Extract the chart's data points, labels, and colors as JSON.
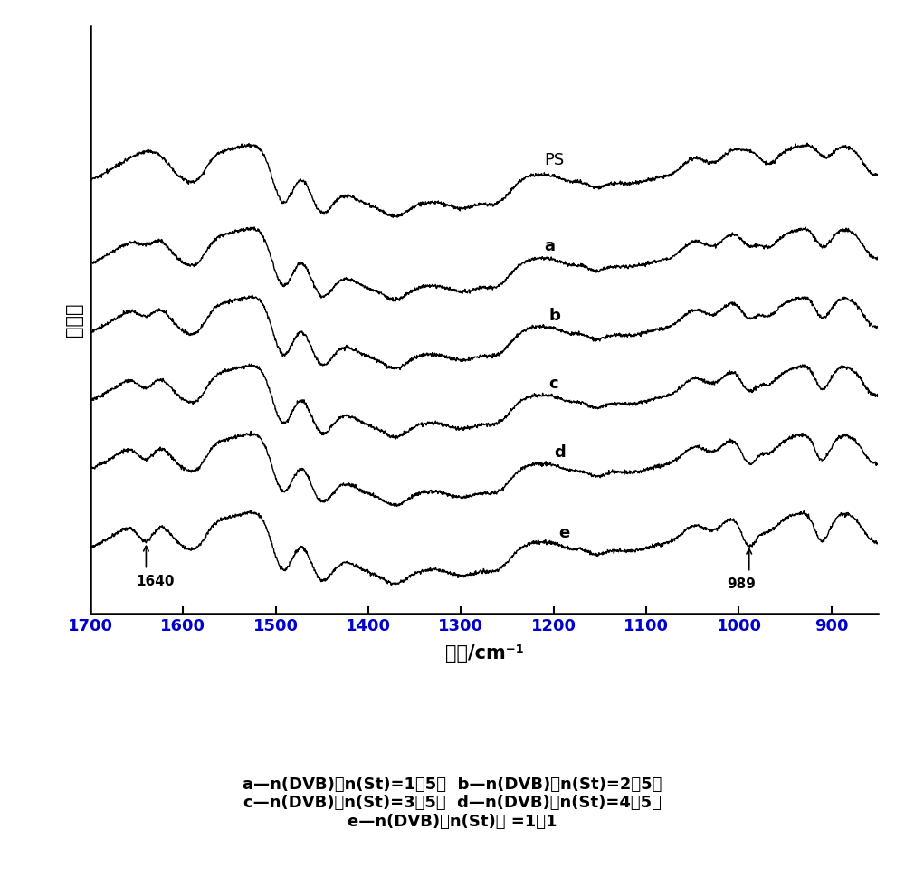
{
  "xmin": 850,
  "xmax": 1700,
  "xlabel": "波数/cm⁻¹",
  "ylabel": "透过率",
  "curve_labels": [
    "PS",
    "a",
    "b",
    "c",
    "d",
    "e"
  ],
  "offsets": [
    8.5,
    6.8,
    5.4,
    4.0,
    2.6,
    1.0
  ],
  "annotation_1640_label": "1640",
  "annotation_989_label": "989",
  "caption_lines": [
    "a—n(DVB)：n(St)=1：5；  b—n(DVB)：n(St)=2：5；",
    "c—n(DVB)：n(St)=3：5；  d—n(DVB)：n(St)=4：5；",
    "e—n(DVB)：n(St)） =1：1"
  ],
  "background_color": "#ffffff",
  "line_color": "#000000",
  "tick_label_color": "#0000cc",
  "fontsize_tick": 13,
  "fontsize_axis_label": 15,
  "fontsize_curve_label": 13,
  "fontsize_caption": 13,
  "fontsize_annotation": 11
}
